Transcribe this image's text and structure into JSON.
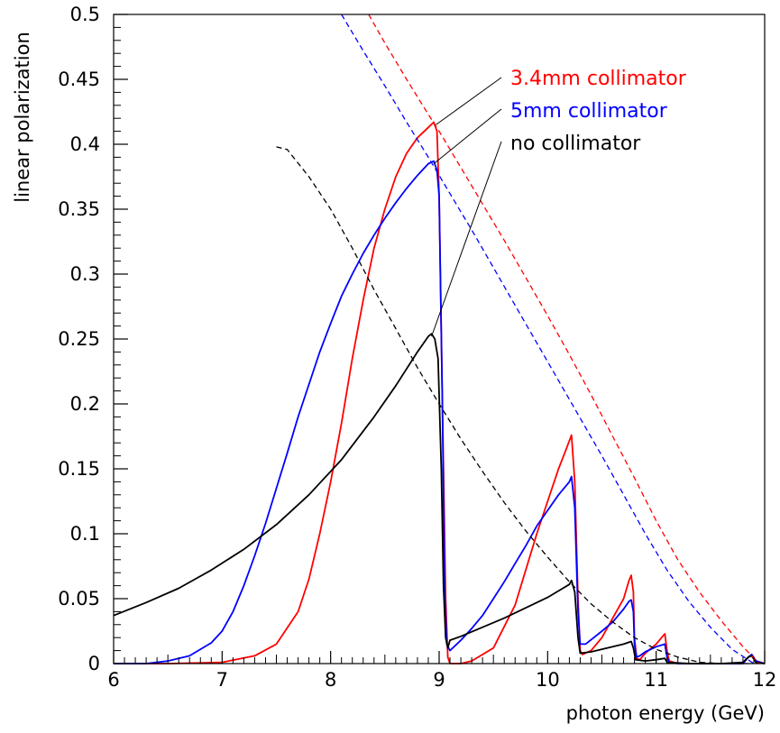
{
  "chart_data": {
    "type": "line",
    "xlabel": "photon energy (GeV)",
    "ylabel": "linear polarization",
    "xlim": [
      6,
      12
    ],
    "ylim": [
      0,
      0.5
    ],
    "xticks": [
      "6",
      "7",
      "8",
      "9",
      "10",
      "11",
      "12"
    ],
    "yticks": [
      "0",
      "0.05",
      "0.1",
      "0.15",
      "0.2",
      "0.25",
      "0.3",
      "0.35",
      "0.4",
      "0.45",
      "0.5"
    ],
    "grid": false,
    "series": [
      {
        "name": "3.4mm collimator",
        "color": "#ff0000",
        "style": "solid",
        "points": [
          [
            6.0,
            0.0
          ],
          [
            6.5,
            0.0
          ],
          [
            7.0,
            0.001
          ],
          [
            7.3,
            0.006
          ],
          [
            7.5,
            0.015
          ],
          [
            7.7,
            0.04
          ],
          [
            7.8,
            0.065
          ],
          [
            7.9,
            0.1
          ],
          [
            8.0,
            0.14
          ],
          [
            8.1,
            0.185
          ],
          [
            8.2,
            0.235
          ],
          [
            8.3,
            0.28
          ],
          [
            8.4,
            0.32
          ],
          [
            8.5,
            0.35
          ],
          [
            8.6,
            0.375
          ],
          [
            8.7,
            0.393
          ],
          [
            8.8,
            0.405
          ],
          [
            8.9,
            0.413
          ],
          [
            8.95,
            0.417
          ],
          [
            8.98,
            0.41
          ],
          [
            9.0,
            0.36
          ],
          [
            9.03,
            0.2
          ],
          [
            9.06,
            0.05
          ],
          [
            9.08,
            0.005
          ],
          [
            9.1,
            0.0
          ],
          [
            9.2,
            0.0
          ],
          [
            9.3,
            0.002
          ],
          [
            9.5,
            0.012
          ],
          [
            9.7,
            0.045
          ],
          [
            9.9,
            0.1
          ],
          [
            10.0,
            0.125
          ],
          [
            10.1,
            0.15
          ],
          [
            10.17,
            0.165
          ],
          [
            10.22,
            0.176
          ],
          [
            10.25,
            0.14
          ],
          [
            10.28,
            0.05
          ],
          [
            10.3,
            0.01
          ],
          [
            10.32,
            0.007
          ],
          [
            10.4,
            0.01
          ],
          [
            10.5,
            0.02
          ],
          [
            10.6,
            0.035
          ],
          [
            10.7,
            0.05
          ],
          [
            10.75,
            0.064
          ],
          [
            10.77,
            0.068
          ],
          [
            10.79,
            0.055
          ],
          [
            10.8,
            0.02
          ],
          [
            10.82,
            0.004
          ],
          [
            10.85,
            0.003
          ],
          [
            10.9,
            0.008
          ],
          [
            11.0,
            0.015
          ],
          [
            11.05,
            0.02
          ],
          [
            11.08,
            0.023
          ],
          [
            11.1,
            0.01
          ],
          [
            11.12,
            0.002
          ],
          [
            11.2,
            0.0
          ],
          [
            11.5,
            0.0
          ],
          [
            11.8,
            0.0
          ],
          [
            11.85,
            0.005
          ],
          [
            11.88,
            0.007
          ],
          [
            11.92,
            0.002
          ],
          [
            12.0,
            0.0
          ]
        ]
      },
      {
        "name": "5mm collimator",
        "color": "#0000ff",
        "style": "solid",
        "points": [
          [
            6.0,
            0.0
          ],
          [
            6.3,
            0.0
          ],
          [
            6.5,
            0.002
          ],
          [
            6.7,
            0.006
          ],
          [
            6.9,
            0.016
          ],
          [
            7.0,
            0.025
          ],
          [
            7.1,
            0.04
          ],
          [
            7.2,
            0.06
          ],
          [
            7.3,
            0.083
          ],
          [
            7.4,
            0.108
          ],
          [
            7.5,
            0.135
          ],
          [
            7.6,
            0.162
          ],
          [
            7.7,
            0.19
          ],
          [
            7.8,
            0.215
          ],
          [
            7.9,
            0.24
          ],
          [
            8.0,
            0.262
          ],
          [
            8.1,
            0.283
          ],
          [
            8.2,
            0.3
          ],
          [
            8.3,
            0.316
          ],
          [
            8.4,
            0.33
          ],
          [
            8.5,
            0.343
          ],
          [
            8.6,
            0.355
          ],
          [
            8.7,
            0.366
          ],
          [
            8.8,
            0.376
          ],
          [
            8.9,
            0.385
          ],
          [
            8.95,
            0.387
          ],
          [
            8.98,
            0.38
          ],
          [
            9.0,
            0.36
          ],
          [
            9.03,
            0.2
          ],
          [
            9.05,
            0.06
          ],
          [
            9.07,
            0.015
          ],
          [
            9.1,
            0.01
          ],
          [
            9.2,
            0.018
          ],
          [
            9.3,
            0.027
          ],
          [
            9.4,
            0.037
          ],
          [
            9.5,
            0.05
          ],
          [
            9.6,
            0.063
          ],
          [
            9.7,
            0.077
          ],
          [
            9.8,
            0.091
          ],
          [
            9.9,
            0.106
          ],
          [
            10.0,
            0.118
          ],
          [
            10.1,
            0.13
          ],
          [
            10.2,
            0.14
          ],
          [
            10.22,
            0.144
          ],
          [
            10.25,
            0.12
          ],
          [
            10.28,
            0.04
          ],
          [
            10.3,
            0.015
          ],
          [
            10.35,
            0.015
          ],
          [
            10.5,
            0.025
          ],
          [
            10.6,
            0.032
          ],
          [
            10.7,
            0.042
          ],
          [
            10.75,
            0.048
          ],
          [
            10.77,
            0.049
          ],
          [
            10.79,
            0.04
          ],
          [
            10.8,
            0.015
          ],
          [
            10.82,
            0.005
          ],
          [
            10.85,
            0.006
          ],
          [
            10.9,
            0.009
          ],
          [
            11.0,
            0.013
          ],
          [
            11.08,
            0.015
          ],
          [
            11.1,
            0.005
          ],
          [
            11.12,
            0.001
          ],
          [
            11.2,
            0.0
          ],
          [
            11.5,
            0.0
          ],
          [
            11.8,
            0.0
          ],
          [
            11.85,
            0.005
          ],
          [
            11.88,
            0.007
          ],
          [
            11.92,
            0.002
          ],
          [
            12.0,
            0.0
          ]
        ]
      },
      {
        "name": "no collimator",
        "color": "#000000",
        "style": "solid",
        "points": [
          [
            6.0,
            0.037
          ],
          [
            6.3,
            0.047
          ],
          [
            6.6,
            0.058
          ],
          [
            6.9,
            0.072
          ],
          [
            7.2,
            0.088
          ],
          [
            7.5,
            0.107
          ],
          [
            7.8,
            0.13
          ],
          [
            8.1,
            0.157
          ],
          [
            8.4,
            0.19
          ],
          [
            8.6,
            0.214
          ],
          [
            8.8,
            0.24
          ],
          [
            8.9,
            0.252
          ],
          [
            8.93,
            0.254
          ],
          [
            8.96,
            0.25
          ],
          [
            8.99,
            0.235
          ],
          [
            9.02,
            0.15
          ],
          [
            9.04,
            0.06
          ],
          [
            9.06,
            0.02
          ],
          [
            9.08,
            0.012
          ],
          [
            9.1,
            0.018
          ],
          [
            9.2,
            0.021
          ],
          [
            9.4,
            0.028
          ],
          [
            9.6,
            0.035
          ],
          [
            9.8,
            0.043
          ],
          [
            10.0,
            0.051
          ],
          [
            10.1,
            0.056
          ],
          [
            10.2,
            0.061
          ],
          [
            10.22,
            0.064
          ],
          [
            10.25,
            0.055
          ],
          [
            10.28,
            0.02
          ],
          [
            10.3,
            0.008
          ],
          [
            10.4,
            0.009
          ],
          [
            10.6,
            0.013
          ],
          [
            10.7,
            0.015
          ],
          [
            10.77,
            0.017
          ],
          [
            10.79,
            0.012
          ],
          [
            10.81,
            0.003
          ],
          [
            10.9,
            0.002
          ],
          [
            11.0,
            0.003
          ],
          [
            11.08,
            0.004
          ],
          [
            11.1,
            0.001
          ],
          [
            11.3,
            0.0
          ],
          [
            11.6,
            0.0
          ],
          [
            11.8,
            0.001
          ],
          [
            11.85,
            0.005
          ],
          [
            11.88,
            0.006
          ],
          [
            11.92,
            0.001
          ],
          [
            12.0,
            0.0
          ]
        ]
      },
      {
        "color": "#ff0000",
        "style": "dashed",
        "points": [
          [
            8.35,
            0.5
          ],
          [
            8.5,
            0.478
          ],
          [
            8.7,
            0.45
          ],
          [
            8.9,
            0.423
          ],
          [
            9.0,
            0.41
          ],
          [
            9.2,
            0.382
          ],
          [
            9.4,
            0.354
          ],
          [
            9.6,
            0.326
          ],
          [
            9.8,
            0.297
          ],
          [
            10.0,
            0.268
          ],
          [
            10.2,
            0.238
          ],
          [
            10.4,
            0.207
          ],
          [
            10.6,
            0.175
          ],
          [
            10.8,
            0.143
          ],
          [
            11.0,
            0.11
          ],
          [
            11.2,
            0.08
          ],
          [
            11.4,
            0.055
          ],
          [
            11.6,
            0.033
          ],
          [
            11.8,
            0.013
          ],
          [
            11.95,
            0.0
          ]
        ]
      },
      {
        "color": "#0000ff",
        "style": "dashed",
        "points": [
          [
            8.1,
            0.5
          ],
          [
            8.3,
            0.472
          ],
          [
            8.5,
            0.445
          ],
          [
            8.7,
            0.417
          ],
          [
            8.9,
            0.39
          ],
          [
            9.1,
            0.362
          ],
          [
            9.3,
            0.334
          ],
          [
            9.5,
            0.305
          ],
          [
            9.7,
            0.276
          ],
          [
            9.9,
            0.247
          ],
          [
            10.1,
            0.218
          ],
          [
            10.3,
            0.189
          ],
          [
            10.5,
            0.16
          ],
          [
            10.7,
            0.13
          ],
          [
            10.9,
            0.1
          ],
          [
            11.1,
            0.072
          ],
          [
            11.3,
            0.048
          ],
          [
            11.5,
            0.028
          ],
          [
            11.7,
            0.011
          ],
          [
            11.9,
            0.0
          ]
        ]
      },
      {
        "color": "#000000",
        "style": "dashed",
        "points": [
          [
            7.5,
            0.398
          ],
          [
            7.6,
            0.396
          ],
          [
            7.8,
            0.375
          ],
          [
            8.0,
            0.35
          ],
          [
            8.2,
            0.32
          ],
          [
            8.4,
            0.288
          ],
          [
            8.6,
            0.258
          ],
          [
            8.8,
            0.228
          ],
          [
            9.0,
            0.2
          ],
          [
            9.2,
            0.173
          ],
          [
            9.4,
            0.148
          ],
          [
            9.6,
            0.124
          ],
          [
            9.8,
            0.102
          ],
          [
            10.0,
            0.082
          ],
          [
            10.2,
            0.063
          ],
          [
            10.4,
            0.046
          ],
          [
            10.6,
            0.032
          ],
          [
            10.8,
            0.02
          ],
          [
            11.0,
            0.011
          ],
          [
            11.2,
            0.005
          ],
          [
            11.4,
            0.001
          ],
          [
            11.6,
            0.0
          ],
          [
            11.85,
            0.0
          ]
        ]
      }
    ],
    "annotations": [
      {
        "text": "3.4mm collimator",
        "color": "#ff0000",
        "points_to": [
          8.97,
          0.415
        ]
      },
      {
        "text": "5mm collimator",
        "color": "#0000ff",
        "points_to": [
          8.95,
          0.385
        ]
      },
      {
        "text": "no collimator",
        "color": "#000000",
        "points_to": [
          8.93,
          0.252
        ]
      }
    ]
  }
}
